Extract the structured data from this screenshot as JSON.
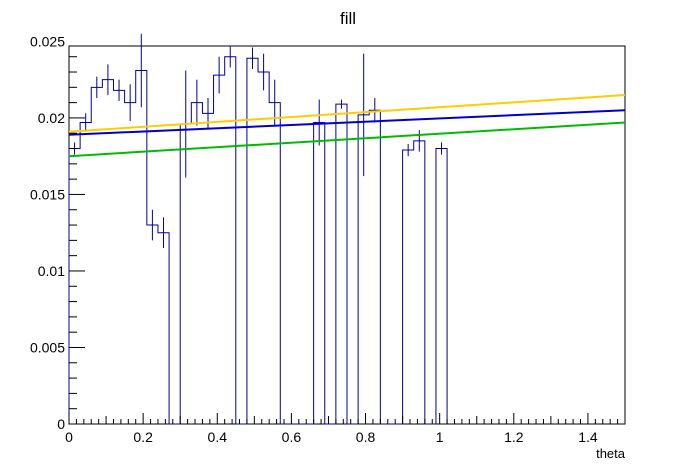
{
  "chart_data": {
    "type": "histogram",
    "title": "fill",
    "xlabel": "theta",
    "ylabel": "",
    "xlim": [
      0,
      1.5
    ],
    "ylim": [
      0,
      0.0247
    ],
    "grid": false,
    "legend": "none",
    "x_tick_labels": [
      "0",
      "0.2",
      "0.4",
      "0.6",
      "0.8",
      "1",
      "1.2",
      "1.4"
    ],
    "x_tick_values": [
      0,
      0.2,
      0.4,
      0.6,
      0.8,
      1.0,
      1.2,
      1.4
    ],
    "y_tick_labels": [
      "0",
      "0.005",
      "0.01",
      "0.015",
      "0.02",
      "0.025"
    ],
    "y_tick_values": [
      0,
      0.005,
      0.01,
      0.015,
      0.02,
      0.025
    ],
    "histogram": {
      "bin_width": 0.03,
      "bins": [
        {
          "x0": 0.0,
          "value": 0.018,
          "error": 0.0004
        },
        {
          "x0": 0.03,
          "value": 0.0197,
          "error": 0.0006
        },
        {
          "x0": 0.06,
          "value": 0.022,
          "error": 0.0007
        },
        {
          "x0": 0.09,
          "value": 0.0225,
          "error": 0.001
        },
        {
          "x0": 0.12,
          "value": 0.0218,
          "error": 0.0007
        },
        {
          "x0": 0.15,
          "value": 0.021,
          "error": 0.0012
        },
        {
          "x0": 0.18,
          "value": 0.0231,
          "error": 0.0024
        },
        {
          "x0": 0.21,
          "value": 0.013,
          "error": 0.001
        },
        {
          "x0": 0.24,
          "value": 0.0125,
          "error": 0.001
        },
        {
          "x0": 0.27,
          "value": 0.0,
          "error": 0.0
        },
        {
          "x0": 0.3,
          "value": 0.0196,
          "error": 0.0035
        },
        {
          "x0": 0.33,
          "value": 0.021,
          "error": 0.0015
        },
        {
          "x0": 0.36,
          "value": 0.0203,
          "error": 0.001
        },
        {
          "x0": 0.39,
          "value": 0.0228,
          "error": 0.0012
        },
        {
          "x0": 0.42,
          "value": 0.024,
          "error": 0.0007
        },
        {
          "x0": 0.45,
          "value": 0.0,
          "error": 0.0
        },
        {
          "x0": 0.48,
          "value": 0.0239,
          "error": 0.0007
        },
        {
          "x0": 0.51,
          "value": 0.023,
          "error": 0.0012
        },
        {
          "x0": 0.54,
          "value": 0.021,
          "error": 0.0015
        },
        {
          "x0": 0.57,
          "value": 0.0,
          "error": 0.0
        },
        {
          "x0": 0.6,
          "value": 0.0,
          "error": 0.0
        },
        {
          "x0": 0.63,
          "value": 0.0,
          "error": 0.0
        },
        {
          "x0": 0.66,
          "value": 0.0197,
          "error": 0.0015
        },
        {
          "x0": 0.69,
          "value": 0.0,
          "error": 0.0
        },
        {
          "x0": 0.72,
          "value": 0.0209,
          "error": 0.0003
        },
        {
          "x0": 0.75,
          "value": 0.0,
          "error": 0.0
        },
        {
          "x0": 0.78,
          "value": 0.0202,
          "error": 0.004
        },
        {
          "x0": 0.81,
          "value": 0.0205,
          "error": 0.0008
        },
        {
          "x0": 0.84,
          "value": 0.0,
          "error": 0.0
        },
        {
          "x0": 0.87,
          "value": 0.0,
          "error": 0.0
        },
        {
          "x0": 0.9,
          "value": 0.0179,
          "error": 0.0004
        },
        {
          "x0": 0.93,
          "value": 0.0185,
          "error": 0.0007
        },
        {
          "x0": 0.96,
          "value": 0.0,
          "error": 0.0
        },
        {
          "x0": 0.99,
          "value": 0.018,
          "error": 0.0004
        }
      ]
    },
    "series": [
      {
        "color": "#ffcc00",
        "x": [
          0,
          1.5
        ],
        "y": [
          0.0191,
          0.0215
        ]
      },
      {
        "color": "#0000cc",
        "x": [
          0,
          1.5
        ],
        "y": [
          0.0189,
          0.0205
        ]
      },
      {
        "color": "#00bb00",
        "x": [
          0,
          1.5
        ],
        "y": [
          0.0175,
          0.0197
        ]
      }
    ],
    "histogram_color": "#000099"
  }
}
